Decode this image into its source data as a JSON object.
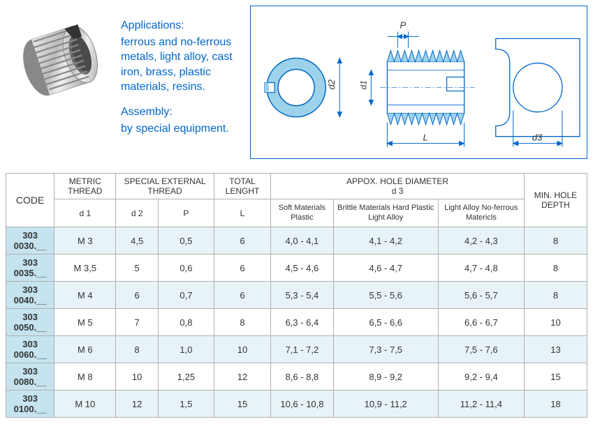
{
  "description": {
    "applications_heading": "Applications:",
    "applications_text": "ferrous and no-ferrous metals, light alloy, cast iron, brass, plastic materials, resins.",
    "assembly_heading": "Assembly:",
    "assembly_text": "by special equipment."
  },
  "drawing_labels": {
    "P": "P",
    "d2": "d2",
    "d1": "d1",
    "L": "L",
    "d3": "d3"
  },
  "table": {
    "headers": {
      "code": "CODE",
      "metric_thread": "METRIC THREAD",
      "d1": "d 1",
      "special_external_thread": "SPECIAL EXTERNAL THREAD",
      "d2": "d 2",
      "P": "P",
      "total_length": "TOTAL LENGHT",
      "L": "L",
      "appox_hole": "APPOX. HOLE DIAMETER",
      "d3": "d 3",
      "soft": "Soft Materials Plastic",
      "brittle": "Brittle Materials Hard Plastic Light Alloy",
      "light_alloy": "Light Alloy No-ferrous Matericls",
      "min_hole_depth": "MIN. HOLE DEPTH"
    },
    "rows": [
      {
        "code": "303 0030.__",
        "d1": "M 3",
        "d2": "4,5",
        "P": "0,5",
        "L": "6",
        "soft": "4,0 - 4,1",
        "brittle": "4,1 - 4,2",
        "la": "4,2 - 4,3",
        "depth": "8",
        "alt": true
      },
      {
        "code": "303 0035.__",
        "d1": "M 3,5",
        "d2": "5",
        "P": "0,6",
        "L": "6",
        "soft": "4,5 - 4,6",
        "brittle": "4,6 - 4,7",
        "la": "4,7 - 4,8",
        "depth": "8",
        "alt": false
      },
      {
        "code": "303 0040.__",
        "d1": "M 4",
        "d2": "6",
        "P": "0,7",
        "L": "6",
        "soft": "5,3 - 5,4",
        "brittle": "5,5 - 5,6",
        "la": "5,6 - 5,7",
        "depth": "8",
        "alt": true
      },
      {
        "code": "303 0050.__",
        "d1": "M 5",
        "d2": "7",
        "P": "0,8",
        "L": "8",
        "soft": "6,3 - 6,4",
        "brittle": "6,5 - 6,6",
        "la": "6,6 - 6,7",
        "depth": "10",
        "alt": false
      },
      {
        "code": "303 0060.__",
        "d1": "M 6",
        "d2": "8",
        "P": "1,0",
        "L": "10",
        "soft": "7,1 - 7,2",
        "brittle": "7,3 - 7,5",
        "la": "7,5 - 7,6",
        "depth": "13",
        "alt": true
      },
      {
        "code": "303 0080.__",
        "d1": "M 8",
        "d2": "10",
        "P": "1,25",
        "L": "12",
        "soft": "8,6 - 8,8",
        "brittle": "8,9 - 9,2",
        "la": "9,2 - 9,4",
        "depth": "15",
        "alt": false
      },
      {
        "code": "303 0100.__",
        "d1": "M 10",
        "d2": "12",
        "P": "1,5",
        "L": "15",
        "soft": "10,6 - 10,8",
        "brittle": "10,9 - 11,2",
        "la": "11,2 - 11,4",
        "depth": "18",
        "alt": true
      }
    ]
  },
  "colors": {
    "accent_blue": "#0066cc",
    "header_orange": "#f28c1d",
    "code_cell_bg": "#c5e4f0",
    "alt_row_bg": "#e8f3f8",
    "border_gray": "#b0b0b0"
  }
}
